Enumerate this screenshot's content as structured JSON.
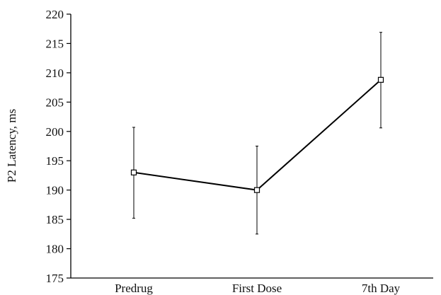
{
  "chart_data": {
    "type": "line",
    "title": "",
    "xlabel": "",
    "ylabel": "P2 Latency, ms",
    "categories": [
      "Predrug",
      "First Dose",
      "7th Day"
    ],
    "ylim": [
      175,
      220
    ],
    "yticks": [
      175,
      180,
      185,
      190,
      195,
      200,
      205,
      210,
      215,
      220
    ],
    "grid": false,
    "legend": "none",
    "series": [
      {
        "values": [
          193,
          190,
          208.8
        ],
        "error_low": [
          185.2,
          182.5,
          200.6
        ],
        "error_high": [
          200.7,
          197.5,
          216.9
        ]
      }
    ]
  }
}
